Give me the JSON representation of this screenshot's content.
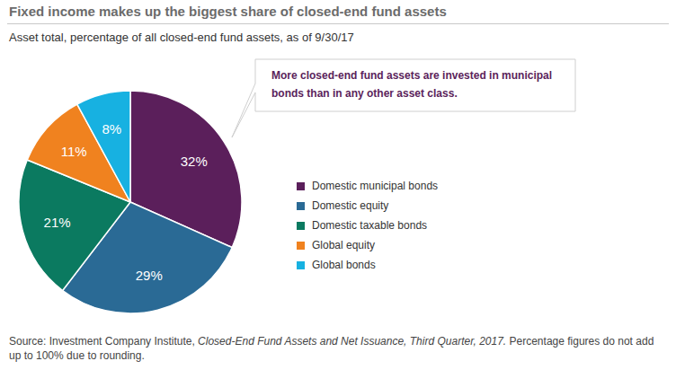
{
  "chart_data": {
    "type": "pie",
    "title": "Fixed income makes up the biggest share of closed-end fund assets",
    "subtitle": "Asset total, percentage of all closed-end fund assets, as of 9/30/17",
    "categories": [
      "Domestic municipal bonds",
      "Domestic equity",
      "Domestic taxable bonds",
      "Global equity",
      "Global bonds"
    ],
    "values": [
      32,
      29,
      21,
      11,
      8
    ],
    "value_labels": [
      "32%",
      "29%",
      "21%",
      "11%",
      "8%"
    ],
    "colors": [
      "#5b1f5b",
      "#2a6a95",
      "#0b7a60",
      "#f0821f",
      "#17b1e1"
    ],
    "data_labels": true,
    "legend": "right",
    "annotation": "More closed-end fund assets are invested in municipal bonds than in any other asset class.",
    "source": [
      "Source: Investment Company Institute, ",
      "Closed-End Fund Assets and Net Issuance, Third Quarter, 2017.",
      " Percentage figures do not add up to 100% due to rounding."
    ]
  }
}
